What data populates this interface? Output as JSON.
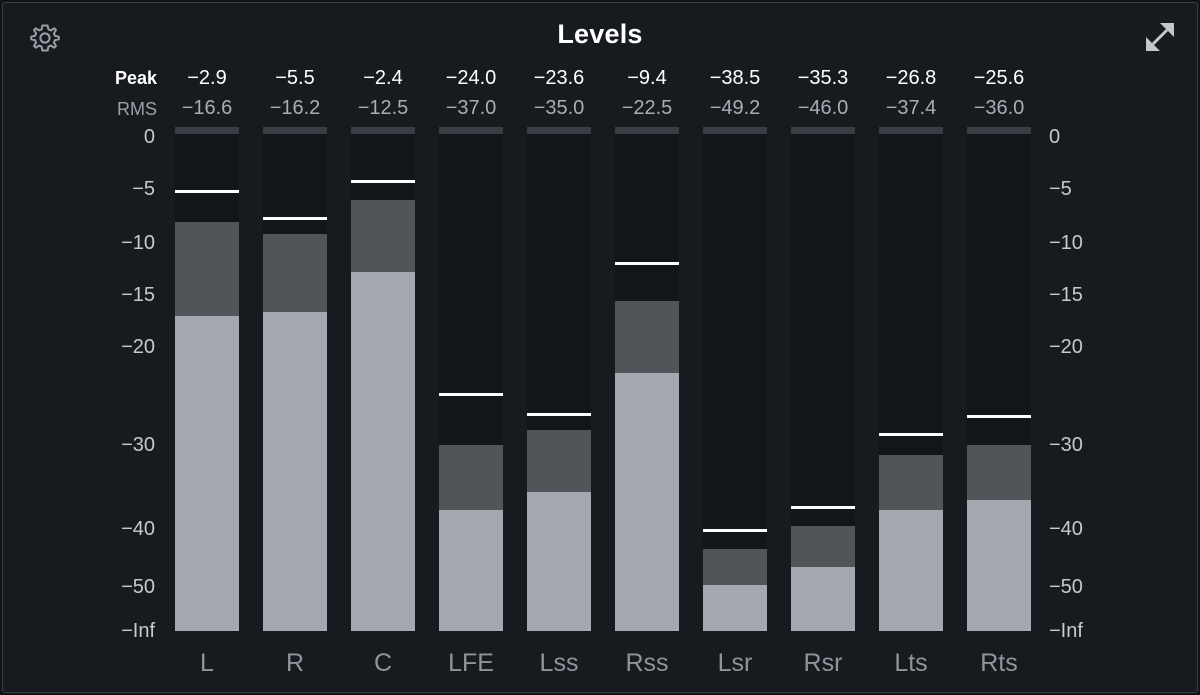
{
  "title": "Levels",
  "row_labels": {
    "peak": "Peak",
    "rms": "RMS"
  },
  "icons": {
    "settings": "gear-icon",
    "expand": "expand-icon"
  },
  "colors": {
    "background": "#171a1f",
    "meter_bg": "#131619",
    "peak_fill": "#50555a",
    "rms_fill": "#a3a9af",
    "peak_hold": "#ffffff"
  },
  "scale_ticks": [
    {
      "label": "0",
      "db": 0
    },
    {
      "label": "−5",
      "db": -5
    },
    {
      "label": "−10",
      "db": -10
    },
    {
      "label": "−15",
      "db": -15
    },
    {
      "label": "−20",
      "db": -20
    },
    {
      "label": "−30",
      "db": -30
    },
    {
      "label": "−40",
      "db": -40
    },
    {
      "label": "−50",
      "db": -50
    },
    {
      "label": "−Inf",
      "db": null
    }
  ],
  "channels": [
    {
      "name": "L",
      "peak": "−2.9",
      "rms": "−16.6",
      "peak_hold_db": -5.2,
      "peak_bar_db": -8.1,
      "rms_bar_db": -17.0
    },
    {
      "name": "R",
      "peak": "−5.5",
      "rms": "−16.2",
      "peak_hold_db": -7.7,
      "peak_bar_db": -9.2,
      "rms_bar_db": -16.6
    },
    {
      "name": "C",
      "peak": "−2.4",
      "rms": "−12.5",
      "peak_hold_db": -4.2,
      "peak_bar_db": -6.0,
      "rms_bar_db": -12.8
    },
    {
      "name": "LFE",
      "peak": "−24.0",
      "rms": "−37.0",
      "peak_hold_db": -24.8,
      "peak_bar_db": -30.0,
      "rms_bar_db": -37.7
    },
    {
      "name": "Lss",
      "peak": "−23.6",
      "rms": "−35.0",
      "peak_hold_db": -26.8,
      "peak_bar_db": -28.5,
      "rms_bar_db": -35.6
    },
    {
      "name": "Rss",
      "peak": "−9.4",
      "rms": "−22.5",
      "peak_hold_db": -11.9,
      "peak_bar_db": -15.6,
      "rms_bar_db": -22.7
    },
    {
      "name": "Lsr",
      "peak": "−38.5",
      "rms": "−49.2",
      "peak_hold_db": -40.2,
      "peak_bar_db": -43.5,
      "rms_bar_db": -49.6
    },
    {
      "name": "Rsr",
      "peak": "−35.3",
      "rms": "−46.0",
      "peak_hold_db": -37.4,
      "peak_bar_db": -39.6,
      "rms_bar_db": -46.6
    },
    {
      "name": "Lts",
      "peak": "−26.8",
      "rms": "−37.4",
      "peak_hold_db": -28.9,
      "peak_bar_db": -31.2,
      "rms_bar_db": -37.7
    },
    {
      "name": "Rts",
      "peak": "−25.6",
      "rms": "−36.0",
      "peak_hold_db": -27.0,
      "peak_bar_db": -30.0,
      "rms_bar_db": -36.5
    }
  ]
}
